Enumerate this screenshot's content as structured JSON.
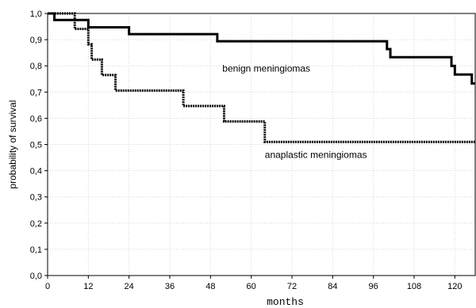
{
  "chart_data": {
    "type": "line",
    "xlabel": "months",
    "ylabel": "probability of survival",
    "xlim": [
      0,
      126
    ],
    "ylim": [
      0,
      1.0
    ],
    "x_ticks": [
      0,
      12,
      24,
      36,
      48,
      60,
      72,
      84,
      96,
      108,
      120
    ],
    "x_tick_labels": [
      "0",
      "12",
      "24",
      "36",
      "48",
      "60",
      "72",
      "84",
      "96",
      "108",
      "120"
    ],
    "y_ticks": [
      0,
      0.1,
      0.2,
      0.3,
      0.4,
      0.5,
      0.6,
      0.7,
      0.8,
      0.9,
      1.0
    ],
    "y_tick_labels": [
      "0,0",
      "0,1",
      "0,2",
      "0,3",
      "0,4",
      "0,5",
      "0,6",
      "0,7",
      "0,8",
      "0,9",
      "1,0"
    ],
    "grid": true,
    "series": [
      {
        "name": "benign meningiomas",
        "style": "solid",
        "color": "#000000",
        "x": [
          0,
          2,
          12,
          24,
          50,
          100,
          101,
          119,
          120,
          125,
          126
        ],
        "y": [
          1.0,
          0.975,
          0.947,
          0.921,
          0.894,
          0.864,
          0.833,
          0.8,
          0.767,
          0.733,
          0.733
        ]
      },
      {
        "name": "anaplastic meningiomas",
        "style": "dotted",
        "color": "#000000",
        "x": [
          0,
          8,
          12,
          13,
          16,
          20,
          40,
          52,
          64,
          126
        ],
        "y": [
          1.0,
          0.941,
          0.882,
          0.824,
          0.765,
          0.706,
          0.647,
          0.588,
          0.51,
          0.51
        ]
      }
    ]
  }
}
